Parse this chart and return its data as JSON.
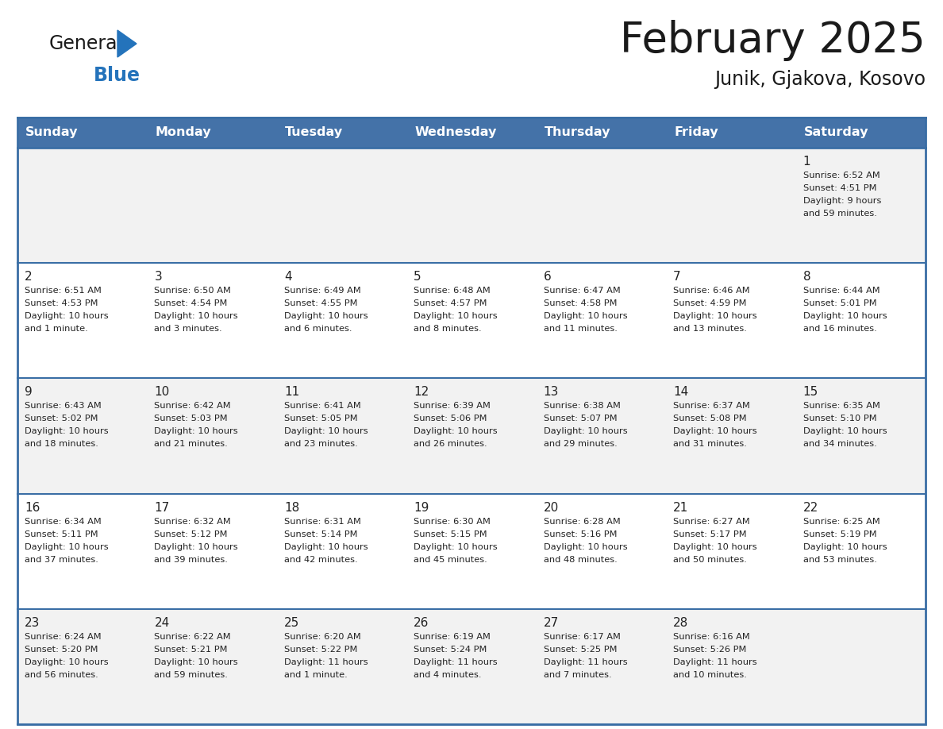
{
  "title": "February 2025",
  "subtitle": "Junik, Gjakova, Kosovo",
  "header_bg": "#4472a8",
  "header_text": "#ffffff",
  "day_names": [
    "Sunday",
    "Monday",
    "Tuesday",
    "Wednesday",
    "Thursday",
    "Friday",
    "Saturday"
  ],
  "row_bg": [
    "#f2f2f2",
    "#ffffff",
    "#f2f2f2",
    "#ffffff",
    "#f2f2f2"
  ],
  "border_color": "#3a6ea5",
  "cell_line_color": "#b0bec5",
  "text_color": "#222222",
  "days": [
    {
      "day": 1,
      "col": 6,
      "row": 0,
      "sunrise": "6:52 AM",
      "sunset": "4:51 PM",
      "daylight": "9 hours\nand 59 minutes."
    },
    {
      "day": 2,
      "col": 0,
      "row": 1,
      "sunrise": "6:51 AM",
      "sunset": "4:53 PM",
      "daylight": "10 hours\nand 1 minute."
    },
    {
      "day": 3,
      "col": 1,
      "row": 1,
      "sunrise": "6:50 AM",
      "sunset": "4:54 PM",
      "daylight": "10 hours\nand 3 minutes."
    },
    {
      "day": 4,
      "col": 2,
      "row": 1,
      "sunrise": "6:49 AM",
      "sunset": "4:55 PM",
      "daylight": "10 hours\nand 6 minutes."
    },
    {
      "day": 5,
      "col": 3,
      "row": 1,
      "sunrise": "6:48 AM",
      "sunset": "4:57 PM",
      "daylight": "10 hours\nand 8 minutes."
    },
    {
      "day": 6,
      "col": 4,
      "row": 1,
      "sunrise": "6:47 AM",
      "sunset": "4:58 PM",
      "daylight": "10 hours\nand 11 minutes."
    },
    {
      "day": 7,
      "col": 5,
      "row": 1,
      "sunrise": "6:46 AM",
      "sunset": "4:59 PM",
      "daylight": "10 hours\nand 13 minutes."
    },
    {
      "day": 8,
      "col": 6,
      "row": 1,
      "sunrise": "6:44 AM",
      "sunset": "5:01 PM",
      "daylight": "10 hours\nand 16 minutes."
    },
    {
      "day": 9,
      "col": 0,
      "row": 2,
      "sunrise": "6:43 AM",
      "sunset": "5:02 PM",
      "daylight": "10 hours\nand 18 minutes."
    },
    {
      "day": 10,
      "col": 1,
      "row": 2,
      "sunrise": "6:42 AM",
      "sunset": "5:03 PM",
      "daylight": "10 hours\nand 21 minutes."
    },
    {
      "day": 11,
      "col": 2,
      "row": 2,
      "sunrise": "6:41 AM",
      "sunset": "5:05 PM",
      "daylight": "10 hours\nand 23 minutes."
    },
    {
      "day": 12,
      "col": 3,
      "row": 2,
      "sunrise": "6:39 AM",
      "sunset": "5:06 PM",
      "daylight": "10 hours\nand 26 minutes."
    },
    {
      "day": 13,
      "col": 4,
      "row": 2,
      "sunrise": "6:38 AM",
      "sunset": "5:07 PM",
      "daylight": "10 hours\nand 29 minutes."
    },
    {
      "day": 14,
      "col": 5,
      "row": 2,
      "sunrise": "6:37 AM",
      "sunset": "5:08 PM",
      "daylight": "10 hours\nand 31 minutes."
    },
    {
      "day": 15,
      "col": 6,
      "row": 2,
      "sunrise": "6:35 AM",
      "sunset": "5:10 PM",
      "daylight": "10 hours\nand 34 minutes."
    },
    {
      "day": 16,
      "col": 0,
      "row": 3,
      "sunrise": "6:34 AM",
      "sunset": "5:11 PM",
      "daylight": "10 hours\nand 37 minutes."
    },
    {
      "day": 17,
      "col": 1,
      "row": 3,
      "sunrise": "6:32 AM",
      "sunset": "5:12 PM",
      "daylight": "10 hours\nand 39 minutes."
    },
    {
      "day": 18,
      "col": 2,
      "row": 3,
      "sunrise": "6:31 AM",
      "sunset": "5:14 PM",
      "daylight": "10 hours\nand 42 minutes."
    },
    {
      "day": 19,
      "col": 3,
      "row": 3,
      "sunrise": "6:30 AM",
      "sunset": "5:15 PM",
      "daylight": "10 hours\nand 45 minutes."
    },
    {
      "day": 20,
      "col": 4,
      "row": 3,
      "sunrise": "6:28 AM",
      "sunset": "5:16 PM",
      "daylight": "10 hours\nand 48 minutes."
    },
    {
      "day": 21,
      "col": 5,
      "row": 3,
      "sunrise": "6:27 AM",
      "sunset": "5:17 PM",
      "daylight": "10 hours\nand 50 minutes."
    },
    {
      "day": 22,
      "col": 6,
      "row": 3,
      "sunrise": "6:25 AM",
      "sunset": "5:19 PM",
      "daylight": "10 hours\nand 53 minutes."
    },
    {
      "day": 23,
      "col": 0,
      "row": 4,
      "sunrise": "6:24 AM",
      "sunset": "5:20 PM",
      "daylight": "10 hours\nand 56 minutes."
    },
    {
      "day": 24,
      "col": 1,
      "row": 4,
      "sunrise": "6:22 AM",
      "sunset": "5:21 PM",
      "daylight": "10 hours\nand 59 minutes."
    },
    {
      "day": 25,
      "col": 2,
      "row": 4,
      "sunrise": "6:20 AM",
      "sunset": "5:22 PM",
      "daylight": "11 hours\nand 1 minute."
    },
    {
      "day": 26,
      "col": 3,
      "row": 4,
      "sunrise": "6:19 AM",
      "sunset": "5:24 PM",
      "daylight": "11 hours\nand 4 minutes."
    },
    {
      "day": 27,
      "col": 4,
      "row": 4,
      "sunrise": "6:17 AM",
      "sunset": "5:25 PM",
      "daylight": "11 hours\nand 7 minutes."
    },
    {
      "day": 28,
      "col": 5,
      "row": 4,
      "sunrise": "6:16 AM",
      "sunset": "5:26 PM",
      "daylight": "11 hours\nand 10 minutes."
    }
  ]
}
